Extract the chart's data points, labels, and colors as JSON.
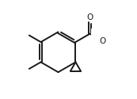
{
  "bg_color": "#ffffff",
  "line_color": "#1a1a1a",
  "line_width": 1.4,
  "dbo": 0.011,
  "figsize": [
    1.73,
    1.25
  ],
  "dpi": 100,
  "font_size": 7.5
}
